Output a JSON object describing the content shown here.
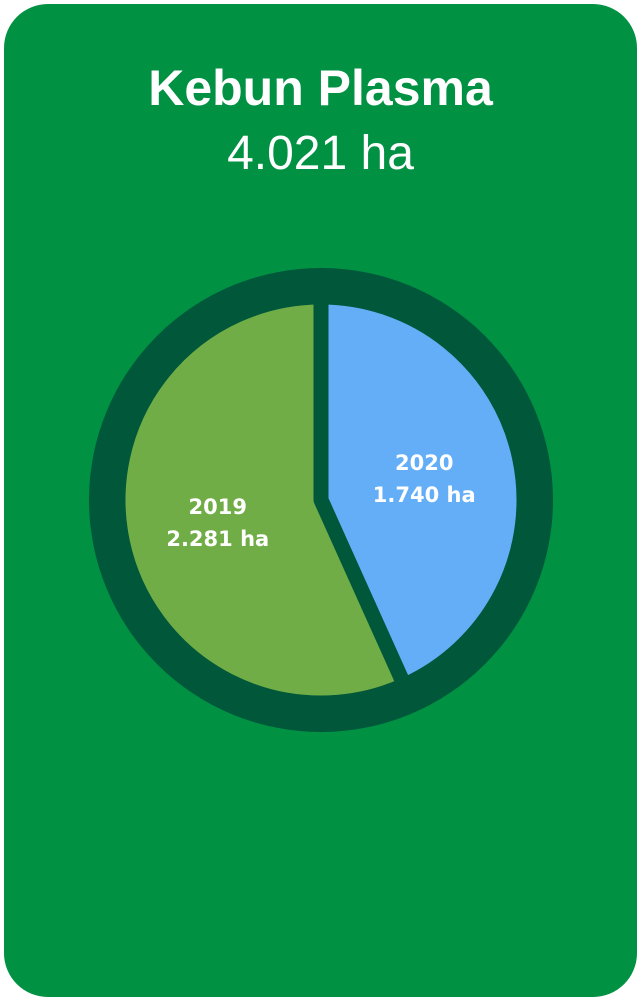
{
  "header": {
    "title": "Kebun Plasma",
    "total": "4.021 ha"
  },
  "colors": {
    "background": "#009143",
    "ring": "#00573A",
    "slice_2019": "#70AD47",
    "slice_2020": "#64AEF7",
    "label": "#FFFFFF"
  },
  "chart_data": {
    "type": "pie",
    "title": "Kebun Plasma",
    "total_label": "4.021 ha",
    "unit": "ha",
    "slices": [
      {
        "name": "2019",
        "value": 2281,
        "value_label": "2.281 ha",
        "color": "#70AD47"
      },
      {
        "name": "2020",
        "value": 1740,
        "value_label": "1.740 ha",
        "color": "#64AEF7"
      }
    ],
    "legend": "none"
  }
}
